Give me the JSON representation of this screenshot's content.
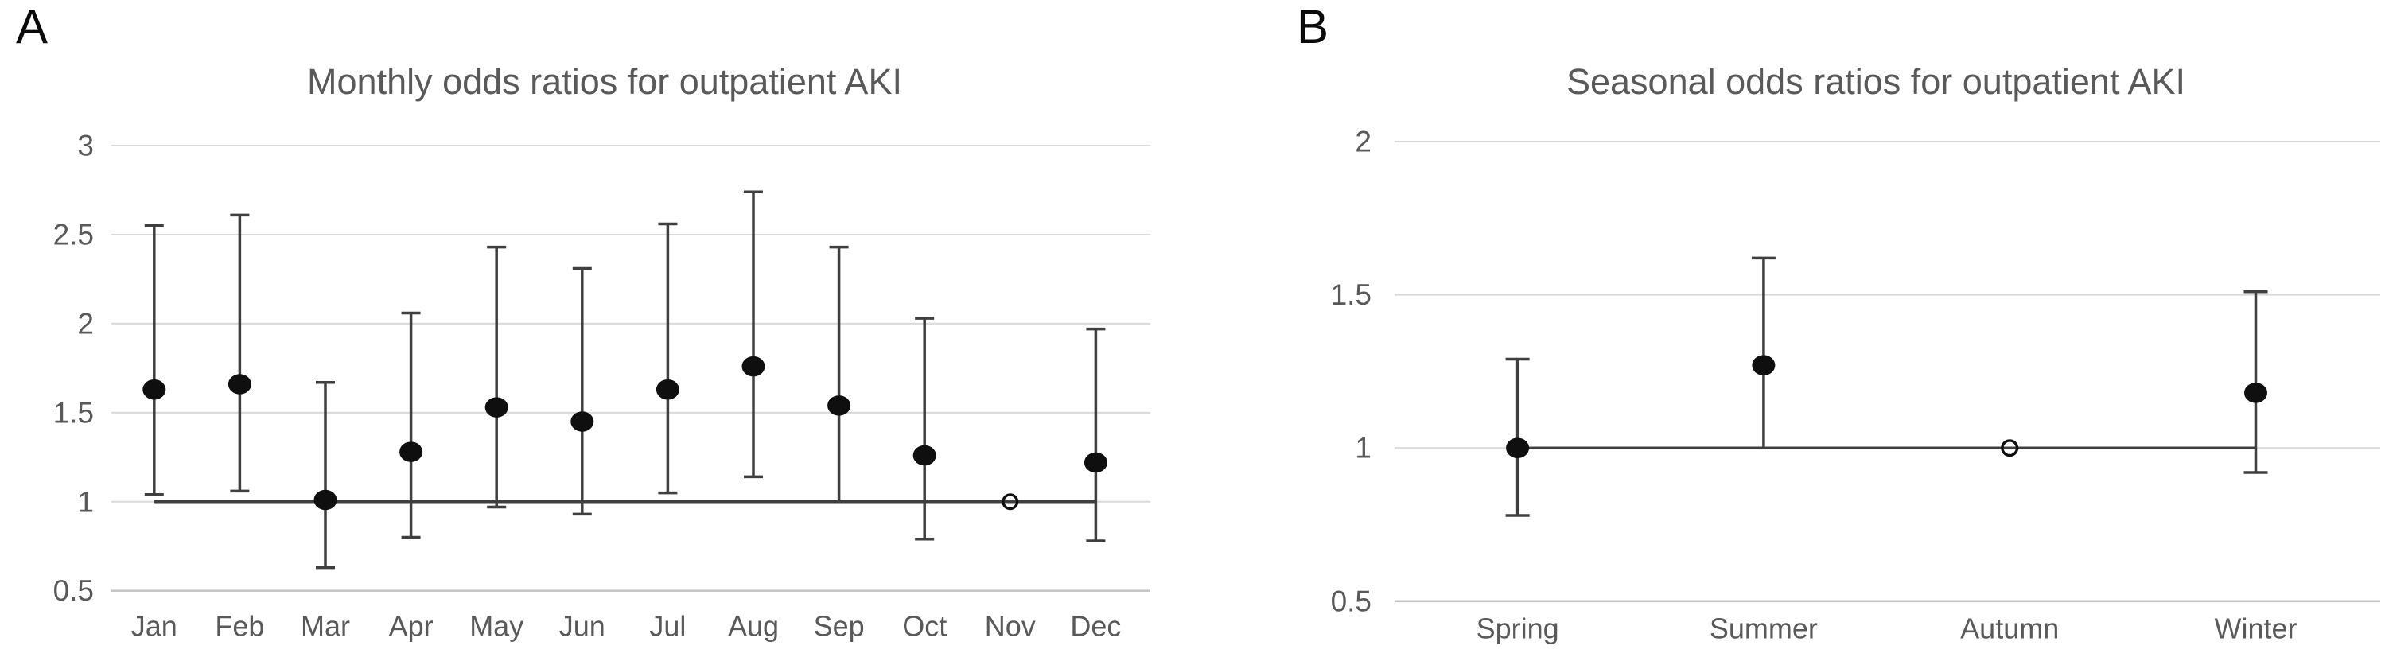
{
  "figure": {
    "background": "#ffffff"
  },
  "panels": [
    {
      "letter": "A",
      "title": "Monthly odds ratios for outpatient AKI"
    },
    {
      "letter": "B",
      "title": "Seasonal odds ratios for outpatient AKI"
    }
  ],
  "colors": {
    "marker": "#0f0f0f",
    "error_bar": "#3f3f3f",
    "reference_line": "#3f3f3f",
    "gridline": "#d9d9d9",
    "axis_line": "#c6c6c6",
    "text": "#595959",
    "panel_letter": "#0a0a0a"
  },
  "chart_data": [
    {
      "type": "scatter",
      "subtype": "odds-ratio-with-95ci-error-bars",
      "panel": "A",
      "title": "Monthly odds ratios for outpatient AKI",
      "categories": [
        "Jan",
        "Feb",
        "Mar",
        "Apr",
        "May",
        "Jun",
        "Jul",
        "Aug",
        "Sep",
        "Oct",
        "Nov",
        "Dec"
      ],
      "series": [
        {
          "name": "Odds ratio",
          "odds_ratios": [
            1.63,
            1.66,
            1.01,
            1.28,
            1.53,
            1.45,
            1.63,
            1.76,
            1.54,
            1.26,
            1.0,
            1.22
          ],
          "ci_lower": [
            1.04,
            1.06,
            0.63,
            0.8,
            0.97,
            0.93,
            1.05,
            1.14,
            1.0,
            0.79,
            null,
            0.78
          ],
          "ci_upper": [
            2.55,
            2.61,
            1.67,
            2.06,
            2.43,
            2.31,
            2.56,
            2.74,
            2.43,
            2.03,
            null,
            1.97
          ]
        }
      ],
      "reference_category": "Nov",
      "reference_marker": "open-circle",
      "reference_line_y": 1.0,
      "ylim": [
        0.5,
        3
      ],
      "yticks": [
        3,
        2.5,
        2,
        1.5,
        1,
        0.5
      ],
      "xlabel": "",
      "ylabel": "",
      "grid": true,
      "legend": false
    },
    {
      "type": "scatter",
      "subtype": "odds-ratio-with-95ci-error-bars",
      "panel": "B",
      "title": "Seasonal odds ratios for outpatient AKI",
      "categories": [
        "Spring",
        "Summer",
        "Autumn",
        "Winter"
      ],
      "series": [
        {
          "name": "Odds ratio",
          "odds_ratios": [
            1.0,
            1.27,
            1.0,
            1.18
          ],
          "ci_lower": [
            0.78,
            1.0,
            null,
            0.92
          ],
          "ci_upper": [
            1.29,
            1.62,
            null,
            1.51
          ]
        }
      ],
      "reference_category": "Autumn",
      "reference_marker": "open-circle",
      "reference_line_y": 1.0,
      "ylim": [
        0.5,
        2
      ],
      "yticks": [
        2,
        1.5,
        1,
        0.5
      ],
      "xlabel": "",
      "ylabel": "",
      "grid": true,
      "legend": false
    }
  ]
}
